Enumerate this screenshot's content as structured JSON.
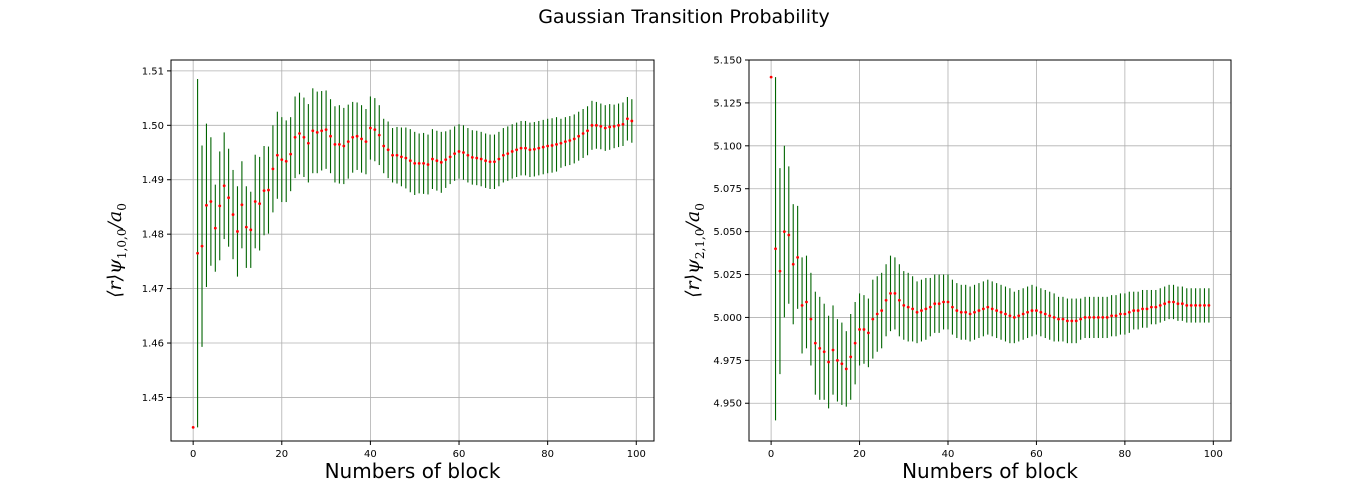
{
  "figure": {
    "title": "Gaussian Transition Probability"
  },
  "colors": {
    "errorbar": "#006400",
    "point": "#ff0000",
    "grid": "#b0b0b0"
  },
  "chart_data": [
    {
      "type": "scatter",
      "error_bars": true,
      "xlabel": "Numbers of block",
      "ylabel": "⟨r⟩ψ1,0,0/a0",
      "ylabel_parts": {
        "main": "⟨r⟩ψ",
        "sub": "1,0,0",
        "tail": "/a",
        "tail_sub": "0"
      },
      "xlim": [
        -5,
        104
      ],
      "ylim": [
        1.442,
        1.512
      ],
      "xticks": [
        0,
        20,
        40,
        60,
        80,
        100
      ],
      "yticks": [
        1.45,
        1.46,
        1.47,
        1.48,
        1.49,
        1.5,
        1.51
      ],
      "ytick_labels": [
        "1.45",
        "1.46",
        "1.47",
        "1.48",
        "1.49",
        "1.50",
        "1.51"
      ],
      "grid": true,
      "y": [
        1.4445,
        1.4765,
        1.4778,
        1.4853,
        1.486,
        1.4811,
        1.4852,
        1.4889,
        1.4867,
        1.4836,
        1.4805,
        1.4854,
        1.4813,
        1.4808,
        1.486,
        1.4856,
        1.488,
        1.4881,
        1.492,
        1.4945,
        1.4937,
        1.4934,
        1.4947,
        1.4978,
        1.4985,
        1.4978,
        1.4967,
        1.499,
        1.4987,
        1.499,
        1.4992,
        1.498,
        1.4965,
        1.4965,
        1.4962,
        1.497,
        1.4978,
        1.498,
        1.4975,
        1.497,
        1.4995,
        1.4992,
        1.4982,
        1.4962,
        1.4955,
        1.4945,
        1.4945,
        1.4942,
        1.494,
        1.4935,
        1.493,
        1.493,
        1.493,
        1.4928,
        1.4938,
        1.4935,
        1.4932,
        1.4937,
        1.4942,
        1.4948,
        1.4952,
        1.495,
        1.4945,
        1.4941,
        1.494,
        1.4938,
        1.4935,
        1.4933,
        1.4933,
        1.4938,
        1.4945,
        1.4948,
        1.4952,
        1.4955,
        1.4958,
        1.4958,
        1.4955,
        1.4956,
        1.4958,
        1.496,
        1.4962,
        1.4963,
        1.4965,
        1.4967,
        1.497,
        1.4972,
        1.4975,
        1.498,
        1.4985,
        1.499,
        1.5,
        1.5,
        1.4998,
        1.4995,
        1.4997,
        1.4998,
        1.5,
        1.5002,
        1.5012,
        1.5008
      ],
      "err": [
        0.0,
        0.032,
        0.0185,
        0.015,
        0.0118,
        0.008,
        0.01,
        0.0098,
        0.009,
        0.0082,
        0.0083,
        0.008,
        0.0075,
        0.007,
        0.0086,
        0.0086,
        0.0082,
        0.008,
        0.008,
        0.008,
        0.0078,
        0.0075,
        0.0068,
        0.0075,
        0.0075,
        0.0073,
        0.0072,
        0.0078,
        0.0075,
        0.0073,
        0.0072,
        0.0068,
        0.007,
        0.0072,
        0.007,
        0.0068,
        0.0065,
        0.0062,
        0.0062,
        0.006,
        0.0058,
        0.0058,
        0.0055,
        0.005,
        0.0052,
        0.005,
        0.0052,
        0.0054,
        0.0056,
        0.0058,
        0.0058,
        0.0055,
        0.0056,
        0.0055,
        0.0055,
        0.0055,
        0.0056,
        0.0052,
        0.005,
        0.005,
        0.005,
        0.005,
        0.005,
        0.005,
        0.005,
        0.005,
        0.005,
        0.005,
        0.005,
        0.005,
        0.005,
        0.005,
        0.005,
        0.005,
        0.005,
        0.005,
        0.005,
        0.005,
        0.005,
        0.005,
        0.005,
        0.005,
        0.005,
        0.0045,
        0.0045,
        0.0045,
        0.0045,
        0.0045,
        0.0045,
        0.0045,
        0.0045,
        0.0043,
        0.0042,
        0.0042,
        0.0042,
        0.004,
        0.004,
        0.004,
        0.004,
        0.004
      ]
    },
    {
      "type": "scatter",
      "error_bars": true,
      "xlabel": "Numbers of block",
      "ylabel": "⟨r⟩ψ2,1,0/a0",
      "ylabel_parts": {
        "main": "⟨r⟩ψ",
        "sub": "2,1,0",
        "tail": "/a",
        "tail_sub": "0"
      },
      "xlim": [
        -5,
        104
      ],
      "ylim": [
        4.928,
        5.15
      ],
      "xticks": [
        0,
        20,
        40,
        60,
        80,
        100
      ],
      "yticks": [
        4.95,
        4.975,
        5.0,
        5.025,
        5.05,
        5.075,
        5.1,
        5.125,
        5.15
      ],
      "ytick_labels": [
        "4.950",
        "4.975",
        "5.000",
        "5.025",
        "5.050",
        "5.075",
        "5.100",
        "5.125",
        "5.150"
      ],
      "grid": true,
      "y": [
        5.14,
        5.04,
        5.027,
        5.05,
        5.048,
        5.031,
        5.035,
        5.007,
        5.009,
        4.999,
        4.985,
        4.982,
        4.98,
        4.974,
        4.981,
        4.975,
        4.973,
        4.97,
        4.977,
        4.985,
        4.993,
        4.993,
        4.991,
        4.999,
        5.002,
        5.004,
        5.01,
        5.014,
        5.014,
        5.01,
        5.007,
        5.006,
        5.005,
        5.003,
        5.004,
        5.005,
        5.006,
        5.008,
        5.008,
        5.009,
        5.009,
        5.006,
        5.004,
        5.003,
        5.003,
        5.002,
        5.003,
        5.004,
        5.005,
        5.006,
        5.005,
        5.004,
        5.003,
        5.002,
        5.001,
        5.0,
        5.001,
        5.002,
        5.003,
        5.004,
        5.004,
        5.003,
        5.002,
        5.001,
        5.0,
        4.999,
        4.999,
        4.998,
        4.998,
        4.998,
        4.999,
        5.0,
        5.0,
        5.0,
        5.0,
        5.0,
        5.0,
        5.001,
        5.001,
        5.002,
        5.002,
        5.003,
        5.004,
        5.004,
        5.005,
        5.005,
        5.006,
        5.006,
        5.007,
        5.008,
        5.009,
        5.009,
        5.008,
        5.008,
        5.007,
        5.007,
        5.007,
        5.007,
        5.007,
        5.007
      ],
      "err": [
        0.0,
        0.1,
        0.06,
        0.05,
        0.04,
        0.035,
        0.03,
        0.028,
        0.027,
        0.027,
        0.03,
        0.03,
        0.028,
        0.027,
        0.026,
        0.024,
        0.024,
        0.022,
        0.025,
        0.024,
        0.021,
        0.02,
        0.02,
        0.023,
        0.022,
        0.022,
        0.021,
        0.022,
        0.021,
        0.021,
        0.02,
        0.02,
        0.019,
        0.018,
        0.018,
        0.018,
        0.017,
        0.017,
        0.017,
        0.016,
        0.016,
        0.016,
        0.016,
        0.016,
        0.016,
        0.016,
        0.016,
        0.016,
        0.016,
        0.016,
        0.016,
        0.016,
        0.016,
        0.016,
        0.016,
        0.015,
        0.015,
        0.015,
        0.015,
        0.015,
        0.014,
        0.014,
        0.014,
        0.014,
        0.014,
        0.013,
        0.013,
        0.013,
        0.013,
        0.013,
        0.012,
        0.012,
        0.012,
        0.012,
        0.012,
        0.012,
        0.012,
        0.012,
        0.012,
        0.012,
        0.012,
        0.012,
        0.011,
        0.011,
        0.011,
        0.011,
        0.01,
        0.01,
        0.01,
        0.01,
        0.01,
        0.01,
        0.01,
        0.01,
        0.01,
        0.01,
        0.01,
        0.01,
        0.01,
        0.01
      ]
    }
  ]
}
